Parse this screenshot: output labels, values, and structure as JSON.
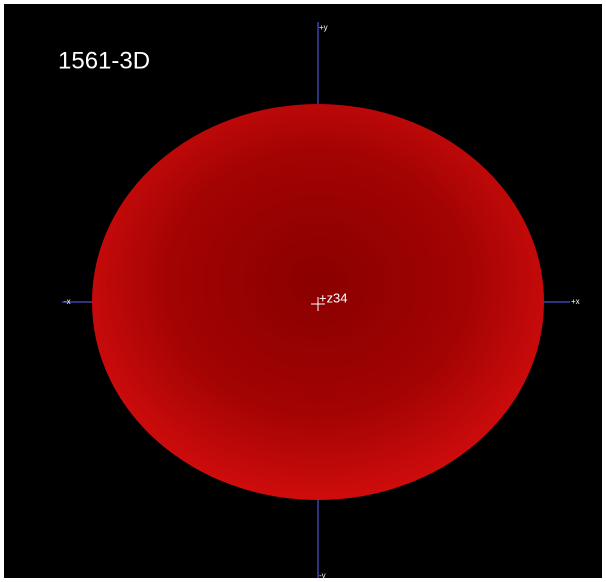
{
  "title": "1561-3D",
  "axes": {
    "plus_y": "+y",
    "minus_y": "-y",
    "minus_x": "-x",
    "plus_x": "+x",
    "plus_z": "+z",
    "origin_label": "34"
  }
}
